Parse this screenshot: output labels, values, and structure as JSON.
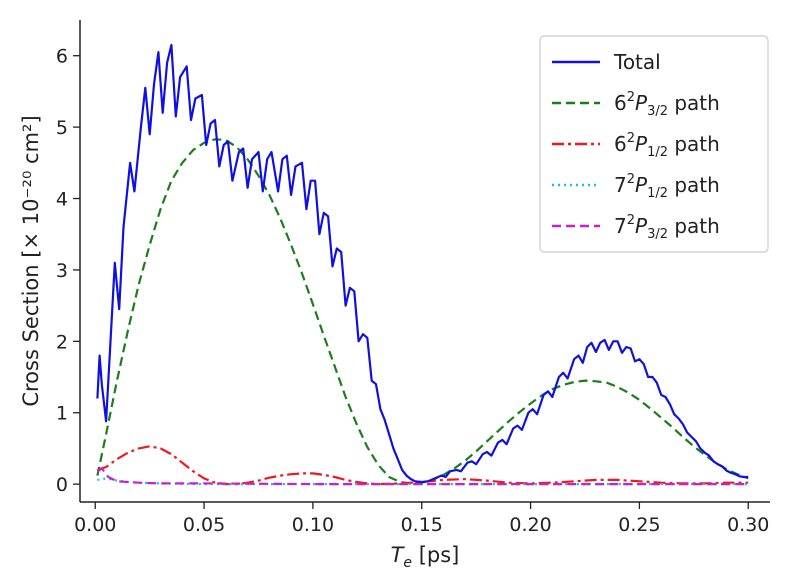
{
  "chart_data": {
    "type": "line",
    "title": "",
    "xlabel": {
      "main": "T",
      "sub": "e",
      "unit": " [ps]"
    },
    "ylabel": "Cross Section [× 10⁻²⁰ cm²]",
    "xlim": [
      -0.007,
      0.31
    ],
    "ylim": [
      -0.25,
      6.5
    ],
    "x_ticks": [
      0.0,
      0.05,
      0.1,
      0.15,
      0.2,
      0.25,
      0.3
    ],
    "x_tick_labels": [
      "0.00",
      "0.05",
      "0.10",
      "0.15",
      "0.20",
      "0.25",
      "0.30"
    ],
    "y_ticks": [
      0,
      1,
      2,
      3,
      4,
      5,
      6
    ],
    "y_tick_labels": [
      "0",
      "1",
      "2",
      "3",
      "4",
      "5",
      "6"
    ],
    "grid": false,
    "legend_position": "top-right",
    "series": [
      {
        "name": "Total",
        "legend": {
          "pre": "Total",
          "sup": "",
          "sub": "",
          "post": ""
        },
        "color": "#1010e0",
        "dash": "solid",
        "points": [
          [
            0.001,
            1.2
          ],
          [
            0.002,
            1.8
          ],
          [
            0.003,
            1.4
          ],
          [
            0.005,
            0.88
          ],
          [
            0.007,
            2.0
          ],
          [
            0.009,
            3.1
          ],
          [
            0.011,
            2.45
          ],
          [
            0.013,
            3.6
          ],
          [
            0.016,
            4.5
          ],
          [
            0.018,
            4.1
          ],
          [
            0.021,
            5.0
          ],
          [
            0.023,
            5.55
          ],
          [
            0.025,
            4.9
          ],
          [
            0.027,
            5.6
          ],
          [
            0.029,
            6.05
          ],
          [
            0.031,
            5.2
          ],
          [
            0.033,
            5.9
          ],
          [
            0.035,
            6.15
          ],
          [
            0.037,
            5.15
          ],
          [
            0.039,
            5.7
          ],
          [
            0.042,
            5.85
          ],
          [
            0.044,
            5.1
          ],
          [
            0.046,
            5.4
          ],
          [
            0.049,
            5.45
          ],
          [
            0.051,
            4.75
          ],
          [
            0.053,
            5.05
          ],
          [
            0.055,
            5.1
          ],
          [
            0.057,
            4.45
          ],
          [
            0.059,
            4.75
          ],
          [
            0.061,
            4.8
          ],
          [
            0.063,
            4.25
          ],
          [
            0.066,
            4.65
          ],
          [
            0.068,
            4.7
          ],
          [
            0.07,
            4.15
          ],
          [
            0.072,
            4.55
          ],
          [
            0.075,
            4.65
          ],
          [
            0.077,
            4.1
          ],
          [
            0.079,
            4.55
          ],
          [
            0.081,
            4.65
          ],
          [
            0.084,
            4.1
          ],
          [
            0.086,
            4.55
          ],
          [
            0.088,
            4.6
          ],
          [
            0.09,
            4.05
          ],
          [
            0.092,
            4.45
          ],
          [
            0.095,
            4.5
          ],
          [
            0.097,
            3.85
          ],
          [
            0.099,
            4.25
          ],
          [
            0.101,
            4.25
          ],
          [
            0.103,
            3.5
          ],
          [
            0.105,
            3.8
          ],
          [
            0.107,
            3.75
          ],
          [
            0.109,
            3.05
          ],
          [
            0.111,
            3.3
          ],
          [
            0.113,
            3.25
          ],
          [
            0.115,
            2.5
          ],
          [
            0.117,
            2.75
          ],
          [
            0.119,
            2.7
          ],
          [
            0.121,
            2.0
          ],
          [
            0.123,
            2.1
          ],
          [
            0.125,
            2.05
          ],
          [
            0.127,
            1.45
          ],
          [
            0.129,
            1.4
          ],
          [
            0.131,
            1.05
          ],
          [
            0.133,
            0.9
          ],
          [
            0.135,
            0.7
          ],
          [
            0.137,
            0.5
          ],
          [
            0.139,
            0.35
          ],
          [
            0.141,
            0.2
          ],
          [
            0.143,
            0.12
          ],
          [
            0.145,
            0.07
          ],
          [
            0.147,
            0.04
          ],
          [
            0.15,
            0.03
          ],
          [
            0.153,
            0.04
          ],
          [
            0.156,
            0.08
          ],
          [
            0.159,
            0.12
          ],
          [
            0.161,
            0.1
          ],
          [
            0.163,
            0.18
          ],
          [
            0.166,
            0.2
          ],
          [
            0.168,
            0.18
          ],
          [
            0.171,
            0.3
          ],
          [
            0.173,
            0.32
          ],
          [
            0.175,
            0.28
          ],
          [
            0.178,
            0.42
          ],
          [
            0.18,
            0.45
          ],
          [
            0.182,
            0.4
          ],
          [
            0.185,
            0.58
          ],
          [
            0.187,
            0.62
          ],
          [
            0.189,
            0.56
          ],
          [
            0.192,
            0.78
          ],
          [
            0.194,
            0.82
          ],
          [
            0.196,
            0.76
          ],
          [
            0.199,
            1.0
          ],
          [
            0.201,
            1.05
          ],
          [
            0.203,
            0.98
          ],
          [
            0.206,
            1.25
          ],
          [
            0.208,
            1.3
          ],
          [
            0.21,
            1.22
          ],
          [
            0.213,
            1.5
          ],
          [
            0.215,
            1.56
          ],
          [
            0.217,
            1.48
          ],
          [
            0.22,
            1.75
          ],
          [
            0.222,
            1.8
          ],
          [
            0.224,
            1.7
          ],
          [
            0.226,
            1.92
          ],
          [
            0.228,
            1.98
          ],
          [
            0.23,
            1.85
          ],
          [
            0.232,
            1.98
          ],
          [
            0.234,
            2.02
          ],
          [
            0.236,
            1.88
          ],
          [
            0.238,
            2.0
          ],
          [
            0.24,
            2.0
          ],
          [
            0.242,
            1.84
          ],
          [
            0.244,
            1.92
          ],
          [
            0.246,
            1.9
          ],
          [
            0.248,
            1.72
          ],
          [
            0.25,
            1.75
          ],
          [
            0.252,
            1.68
          ],
          [
            0.254,
            1.5
          ],
          [
            0.256,
            1.5
          ],
          [
            0.258,
            1.42
          ],
          [
            0.26,
            1.25
          ],
          [
            0.262,
            1.22
          ],
          [
            0.264,
            1.12
          ],
          [
            0.266,
            0.98
          ],
          [
            0.268,
            0.92
          ],
          [
            0.27,
            0.84
          ],
          [
            0.272,
            0.72
          ],
          [
            0.274,
            0.66
          ],
          [
            0.276,
            0.6
          ],
          [
            0.278,
            0.5
          ],
          [
            0.28,
            0.44
          ],
          [
            0.282,
            0.4
          ],
          [
            0.284,
            0.32
          ],
          [
            0.286,
            0.28
          ],
          [
            0.288,
            0.25
          ],
          [
            0.29,
            0.19
          ],
          [
            0.292,
            0.16
          ],
          [
            0.294,
            0.14
          ],
          [
            0.296,
            0.11
          ],
          [
            0.298,
            0.1
          ],
          [
            0.3,
            0.1
          ]
        ]
      },
      {
        "name": "6²P₃/₂ path",
        "legend": {
          "pre": "6",
          "sup": "2",
          "mid": "P",
          "sub": "3/2",
          "post": " path"
        },
        "color": "#1a7f1a",
        "dash": "9,5",
        "points": [
          [
            0.001,
            0.12
          ],
          [
            0.005,
            0.7
          ],
          [
            0.01,
            1.45
          ],
          [
            0.015,
            2.15
          ],
          [
            0.02,
            2.8
          ],
          [
            0.025,
            3.35
          ],
          [
            0.03,
            3.85
          ],
          [
            0.035,
            4.25
          ],
          [
            0.04,
            4.5
          ],
          [
            0.045,
            4.68
          ],
          [
            0.05,
            4.78
          ],
          [
            0.055,
            4.83
          ],
          [
            0.06,
            4.82
          ],
          [
            0.065,
            4.72
          ],
          [
            0.07,
            4.55
          ],
          [
            0.075,
            4.32
          ],
          [
            0.08,
            4.05
          ],
          [
            0.085,
            3.72
          ],
          [
            0.09,
            3.35
          ],
          [
            0.095,
            2.95
          ],
          [
            0.1,
            2.52
          ],
          [
            0.105,
            2.08
          ],
          [
            0.11,
            1.65
          ],
          [
            0.115,
            1.22
          ],
          [
            0.12,
            0.85
          ],
          [
            0.125,
            0.52
          ],
          [
            0.13,
            0.27
          ],
          [
            0.135,
            0.1
          ],
          [
            0.14,
            0.03
          ],
          [
            0.145,
            0.01
          ],
          [
            0.15,
            0.02
          ],
          [
            0.155,
            0.06
          ],
          [
            0.16,
            0.13
          ],
          [
            0.165,
            0.22
          ],
          [
            0.17,
            0.33
          ],
          [
            0.175,
            0.46
          ],
          [
            0.18,
            0.6
          ],
          [
            0.185,
            0.74
          ],
          [
            0.19,
            0.88
          ],
          [
            0.195,
            1.01
          ],
          [
            0.2,
            1.13
          ],
          [
            0.205,
            1.24
          ],
          [
            0.21,
            1.33
          ],
          [
            0.215,
            1.39
          ],
          [
            0.22,
            1.43
          ],
          [
            0.225,
            1.45
          ],
          [
            0.23,
            1.44
          ],
          [
            0.235,
            1.42
          ],
          [
            0.24,
            1.36
          ],
          [
            0.245,
            1.28
          ],
          [
            0.25,
            1.18
          ],
          [
            0.255,
            1.06
          ],
          [
            0.26,
            0.93
          ],
          [
            0.265,
            0.8
          ],
          [
            0.27,
            0.66
          ],
          [
            0.275,
            0.53
          ],
          [
            0.28,
            0.41
          ],
          [
            0.285,
            0.3
          ],
          [
            0.29,
            0.21
          ],
          [
            0.295,
            0.14
          ],
          [
            0.3,
            0.08
          ]
        ]
      },
      {
        "name": "6²P₁/₂ path",
        "legend": {
          "pre": "6",
          "sup": "2",
          "mid": "P",
          "sub": "1/2",
          "post": " path"
        },
        "color": "#ee1a1a",
        "dash": "12,4,3,4",
        "points": [
          [
            0.001,
            0.2
          ],
          [
            0.005,
            0.24
          ],
          [
            0.01,
            0.35
          ],
          [
            0.015,
            0.44
          ],
          [
            0.02,
            0.5
          ],
          [
            0.025,
            0.53
          ],
          [
            0.03,
            0.5
          ],
          [
            0.035,
            0.42
          ],
          [
            0.04,
            0.3
          ],
          [
            0.045,
            0.18
          ],
          [
            0.05,
            0.08
          ],
          [
            0.055,
            0.02
          ],
          [
            0.06,
            0.0
          ],
          [
            0.065,
            0.0
          ],
          [
            0.07,
            0.02
          ],
          [
            0.075,
            0.05
          ],
          [
            0.08,
            0.09
          ],
          [
            0.085,
            0.12
          ],
          [
            0.09,
            0.14
          ],
          [
            0.095,
            0.15
          ],
          [
            0.1,
            0.15
          ],
          [
            0.105,
            0.13
          ],
          [
            0.11,
            0.1
          ],
          [
            0.115,
            0.06
          ],
          [
            0.12,
            0.03
          ],
          [
            0.125,
            0.01
          ],
          [
            0.13,
            0.0
          ],
          [
            0.14,
            0.01
          ],
          [
            0.15,
            0.03
          ],
          [
            0.16,
            0.06
          ],
          [
            0.17,
            0.07
          ],
          [
            0.18,
            0.05
          ],
          [
            0.19,
            0.02
          ],
          [
            0.2,
            0.01
          ],
          [
            0.21,
            0.02
          ],
          [
            0.22,
            0.04
          ],
          [
            0.23,
            0.06
          ],
          [
            0.24,
            0.06
          ],
          [
            0.25,
            0.04
          ],
          [
            0.26,
            0.02
          ],
          [
            0.27,
            0.01
          ],
          [
            0.28,
            0.01
          ],
          [
            0.29,
            0.02
          ],
          [
            0.3,
            0.02
          ]
        ]
      },
      {
        "name": "7²P₁/₂ path",
        "legend": {
          "pre": "7",
          "sup": "2",
          "mid": "P",
          "sub": "1/2",
          "post": " path"
        },
        "color": "#17c3d6",
        "dash": "2,4",
        "points": [
          [
            0.001,
            0.06
          ],
          [
            0.005,
            0.08
          ],
          [
            0.01,
            0.05
          ],
          [
            0.015,
            0.03
          ],
          [
            0.02,
            0.02
          ],
          [
            0.03,
            0.01
          ],
          [
            0.05,
            0.0
          ],
          [
            0.1,
            0.0
          ],
          [
            0.15,
            0.0
          ],
          [
            0.2,
            0.0
          ],
          [
            0.25,
            0.0
          ],
          [
            0.3,
            0.0
          ]
        ]
      },
      {
        "name": "7²P₃/₂ path",
        "legend": {
          "pre": "7",
          "sup": "2",
          "mid": "P",
          "sub": "3/2",
          "post": " path"
        },
        "color": "#cc1fcc",
        "dash": "9,5",
        "points": [
          [
            0.001,
            0.18
          ],
          [
            0.003,
            0.22
          ],
          [
            0.006,
            0.1
          ],
          [
            0.01,
            0.04
          ],
          [
            0.015,
            0.03
          ],
          [
            0.02,
            0.02
          ],
          [
            0.03,
            0.01
          ],
          [
            0.05,
            0.01
          ],
          [
            0.1,
            0.0
          ],
          [
            0.15,
            0.0
          ],
          [
            0.2,
            0.0
          ],
          [
            0.25,
            0.0
          ],
          [
            0.3,
            0.0
          ]
        ]
      }
    ]
  }
}
